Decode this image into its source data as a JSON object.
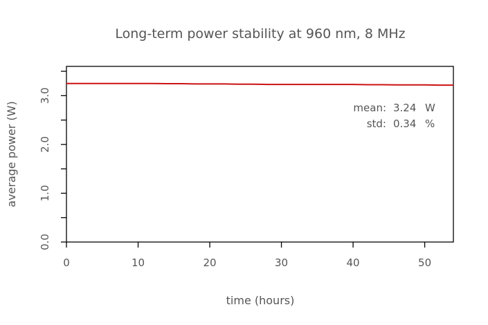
{
  "chart_data": {
    "type": "line",
    "title": "Long-term power stability at 960 nm, 8 MHz",
    "xlabel": "time (hours)",
    "ylabel": "average power (W)",
    "xlim": [
      0,
      54
    ],
    "ylim": [
      0,
      3.6
    ],
    "x_ticks": [
      0,
      10,
      20,
      30,
      40,
      50
    ],
    "x_tick_labels": [
      "0",
      "10",
      "20",
      "30",
      "40",
      "50"
    ],
    "y_major_ticks": [
      0,
      1,
      2,
      3
    ],
    "y_tick_labels": [
      "0.0",
      "1.0",
      "2.0",
      "3.0"
    ],
    "y_minor_ticks": [
      0.5,
      1.5,
      2.5,
      3.5
    ],
    "grid": false,
    "legend": "none",
    "series": [
      {
        "color": "#cc1111",
        "x": [
          0,
          2,
          4,
          6,
          8,
          10,
          12,
          14,
          16,
          18,
          20,
          22,
          24,
          26,
          28,
          30,
          32,
          34,
          36,
          38,
          40,
          42,
          44,
          46,
          48,
          50,
          52,
          54
        ],
        "y": [
          3.25,
          3.25,
          3.25,
          3.25,
          3.25,
          3.25,
          3.25,
          3.245,
          3.245,
          3.24,
          3.24,
          3.24,
          3.235,
          3.235,
          3.23,
          3.23,
          3.23,
          3.23,
          3.23,
          3.23,
          3.23,
          3.225,
          3.225,
          3.22,
          3.22,
          3.22,
          3.215,
          3.215
        ]
      }
    ],
    "annotations": [
      {
        "label": "mean:",
        "value": "3.24",
        "unit": "W"
      },
      {
        "label": "std:",
        "value": "0.34",
        "unit": "%"
      }
    ]
  }
}
